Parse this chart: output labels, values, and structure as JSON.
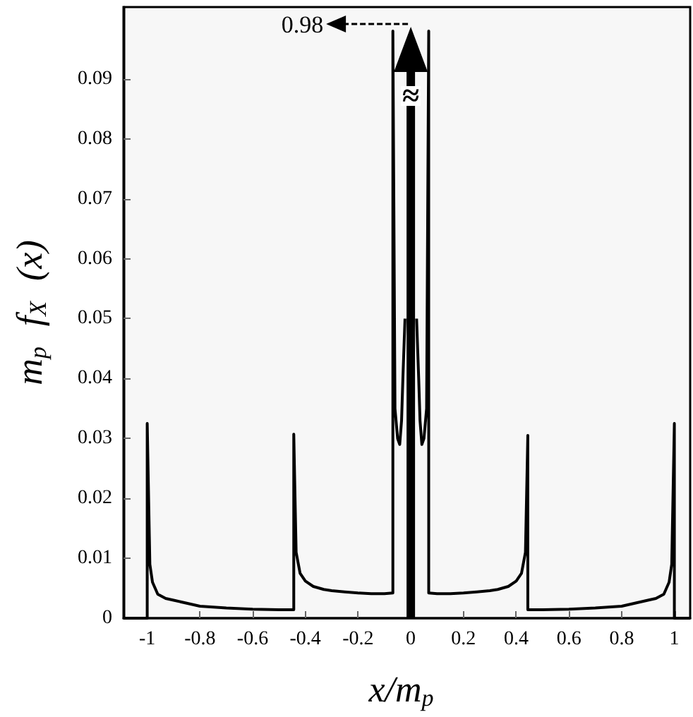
{
  "chart_data": {
    "type": "line",
    "xlabel": "x/m$_{p}$",
    "ylabel": "m$_{p}$ f$_{X}$ (x)",
    "x": [
      -1.09,
      -1,
      -1,
      -0.99,
      -0.98,
      -0.96,
      -0.93,
      -0.9,
      -0.85,
      -0.8,
      -0.7,
      -0.6,
      -0.5,
      -0.444,
      -0.444,
      -0.435,
      -0.42,
      -0.4,
      -0.37,
      -0.33,
      -0.3,
      -0.25,
      -0.2,
      -0.15,
      -0.1,
      -0.068,
      -0.068,
      -0.06,
      -0.05,
      -0.042,
      -0.035,
      -0.03,
      -0.022,
      0,
      0.022,
      0.03,
      0.035,
      0.042,
      0.05,
      0.06,
      0.068,
      0.068,
      0.1,
      0.15,
      0.2,
      0.25,
      0.3,
      0.33,
      0.37,
      0.4,
      0.42,
      0.435,
      0.444,
      0.444,
      0.5,
      0.6,
      0.7,
      0.8,
      0.85,
      0.9,
      0.93,
      0.96,
      0.98,
      0.99,
      1,
      1,
      1.06
    ],
    "series": [
      {
        "color": "#000000",
        "values": [
          0,
          0,
          0.0325,
          0.009,
          0.006,
          0.004,
          0.0033,
          0.003,
          0.0025,
          0.002,
          0.0017,
          0.0015,
          0.0014,
          0.0014,
          0.0307,
          0.011,
          0.0075,
          0.0062,
          0.0053,
          0.0048,
          0.0046,
          0.0044,
          0.0042,
          0.0041,
          0.0041,
          0.0042,
          0.098,
          0.035,
          0.03,
          0.029,
          0.033,
          0.04,
          0.05,
          null,
          0.05,
          0.04,
          0.033,
          0.029,
          0.03,
          0.035,
          0.098,
          0.0042,
          0.0041,
          0.0041,
          0.0042,
          0.0044,
          0.0046,
          0.0048,
          0.0053,
          0.0062,
          0.0075,
          0.011,
          0.0305,
          0.0014,
          0.0014,
          0.0015,
          0.0017,
          0.002,
          0.0025,
          0.003,
          0.0033,
          0.004,
          0.006,
          0.009,
          0.0325,
          0,
          0
        ]
      }
    ],
    "xlim": [
      -1.09,
      1.06
    ],
    "xticks": [
      {
        "value": -1,
        "label": "-1"
      },
      -0.8,
      -0.6,
      -0.4,
      -0.2,
      0,
      0.2,
      0.4,
      0.6,
      0.8,
      1
    ],
    "ylim": [
      0,
      0.102
    ],
    "yticks": [
      0,
      0.01,
      0.02,
      0.03,
      0.04,
      0.05,
      0.06,
      0.07,
      0.08,
      0.09
    ],
    "annotations": [
      "0.98",
      "≈"
    ],
    "marker": "none",
    "grid": false
  }
}
